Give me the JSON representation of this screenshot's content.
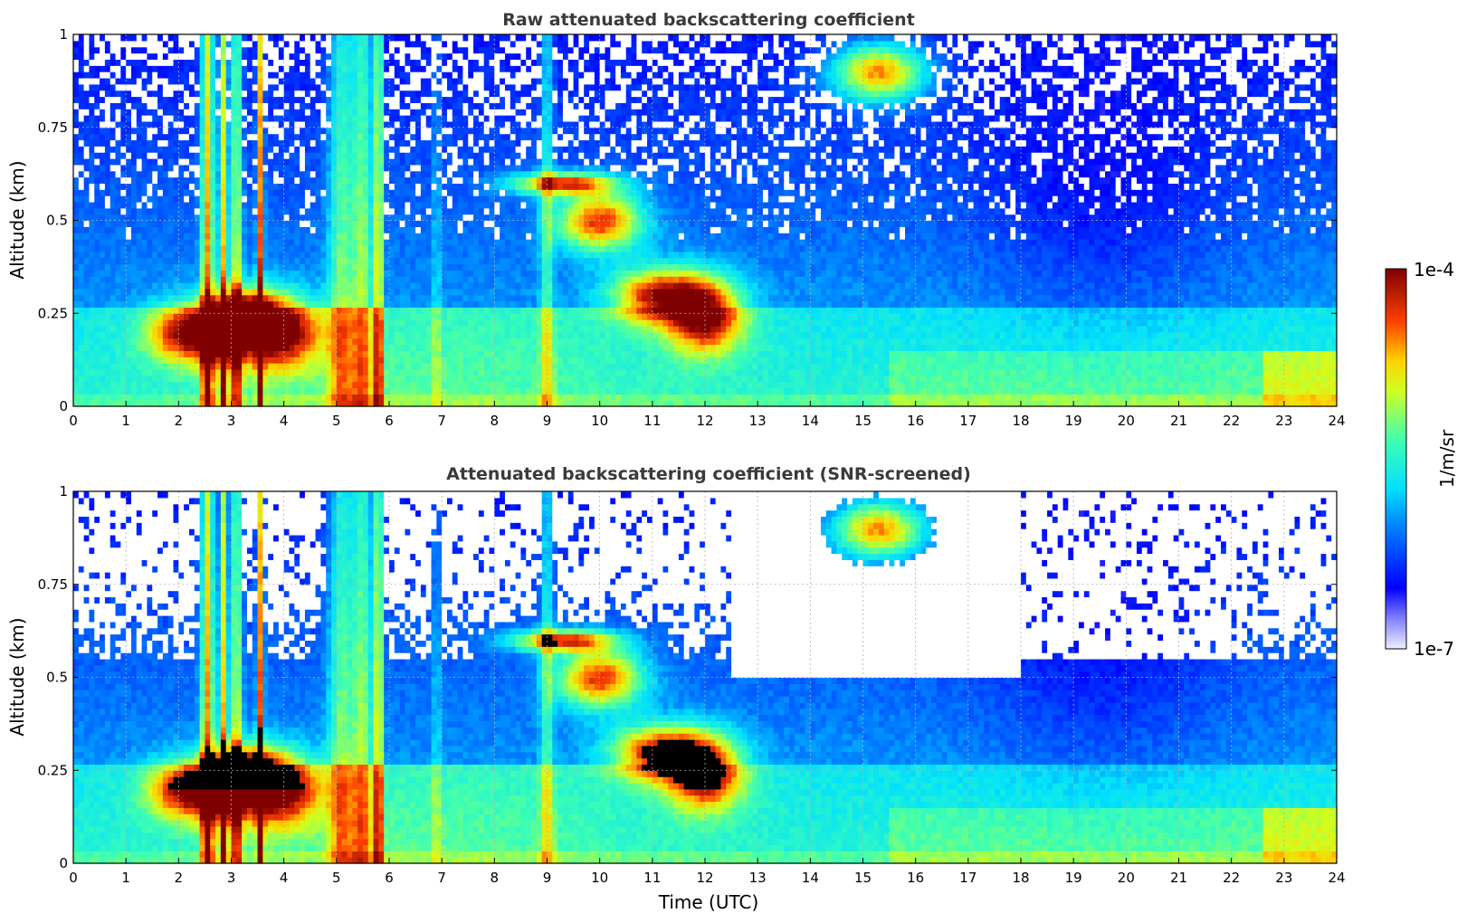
{
  "chart_data": [
    {
      "type": "heatmap",
      "title": "Raw attenuated backscattering coefficient",
      "xlabel": "",
      "ylabel": "Altitude (km)",
      "xlim": [
        0,
        24
      ],
      "ylim": [
        0,
        1
      ],
      "x_ticks": [
        "0",
        "1",
        "2",
        "3",
        "4",
        "5",
        "6",
        "7",
        "8",
        "9",
        "10",
        "11",
        "12",
        "13",
        "14",
        "15",
        "16",
        "17",
        "18",
        "19",
        "20",
        "21",
        "22",
        "23",
        "24"
      ],
      "y_ticks": [
        "0",
        "0.25",
        "0.5",
        "0.75",
        "1"
      ],
      "grid": true,
      "screened": false
    },
    {
      "type": "heatmap",
      "title": "Attenuated backscattering coefficient (SNR-screened)",
      "xlabel": "Time (UTC)",
      "ylabel": "Altitude (km)",
      "xlim": [
        0,
        24
      ],
      "ylim": [
        0,
        1
      ],
      "x_ticks": [
        "0",
        "1",
        "2",
        "3",
        "4",
        "5",
        "6",
        "7",
        "8",
        "9",
        "10",
        "11",
        "12",
        "13",
        "14",
        "15",
        "16",
        "17",
        "18",
        "19",
        "20",
        "21",
        "22",
        "23",
        "24"
      ],
      "y_ticks": [
        "0",
        "0.25",
        "0.5",
        "0.75",
        "1"
      ],
      "grid": true,
      "screened": true
    }
  ],
  "colorbar": {
    "label": "1/m/sr",
    "max_label": "1e-4",
    "min_label": "1e-7",
    "scale": "log",
    "colormap": "jet",
    "placement": "right"
  }
}
